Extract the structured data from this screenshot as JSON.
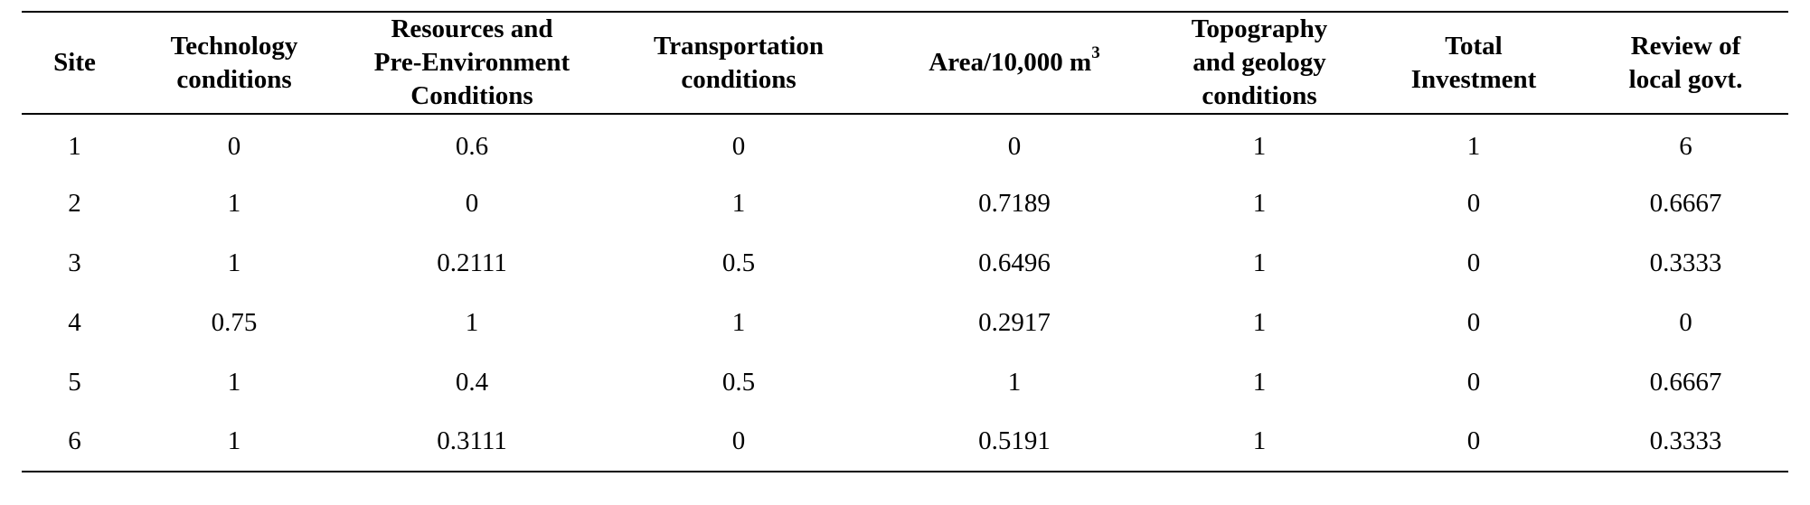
{
  "table": {
    "headers": [
      {
        "lines": [
          "Site"
        ]
      },
      {
        "lines": [
          "Technology",
          "conditions"
        ]
      },
      {
        "lines": [
          "Resources and",
          "Pre-Environment",
          "Conditions"
        ]
      },
      {
        "lines": [
          "Transportation",
          "conditions"
        ]
      },
      {
        "lines": [
          "Area/10,000 m"
        ],
        "sup": "3"
      },
      {
        "lines": [
          "Topography",
          "and geology",
          "conditions"
        ]
      },
      {
        "lines": [
          "Total",
          "Investment"
        ]
      },
      {
        "lines": [
          "Review of",
          "local govt."
        ]
      }
    ],
    "rows": [
      [
        "1",
        "0",
        "0.6",
        "0",
        "0",
        "1",
        "1",
        "6"
      ],
      [
        "2",
        "1",
        "0",
        "1",
        "0.7189",
        "1",
        "0",
        "0.6667"
      ],
      [
        "3",
        "1",
        "0.2111",
        "0.5",
        "0.6496",
        "1",
        "0",
        "0.3333"
      ],
      [
        "4",
        "0.75",
        "1",
        "1",
        "0.2917",
        "1",
        "0",
        "0"
      ],
      [
        "5",
        "1",
        "0.4",
        "0.5",
        "1",
        "1",
        "0",
        "0.6667"
      ],
      [
        "6",
        "1",
        "0.3111",
        "0",
        "0.5191",
        "1",
        "0",
        "0.3333"
      ]
    ]
  }
}
